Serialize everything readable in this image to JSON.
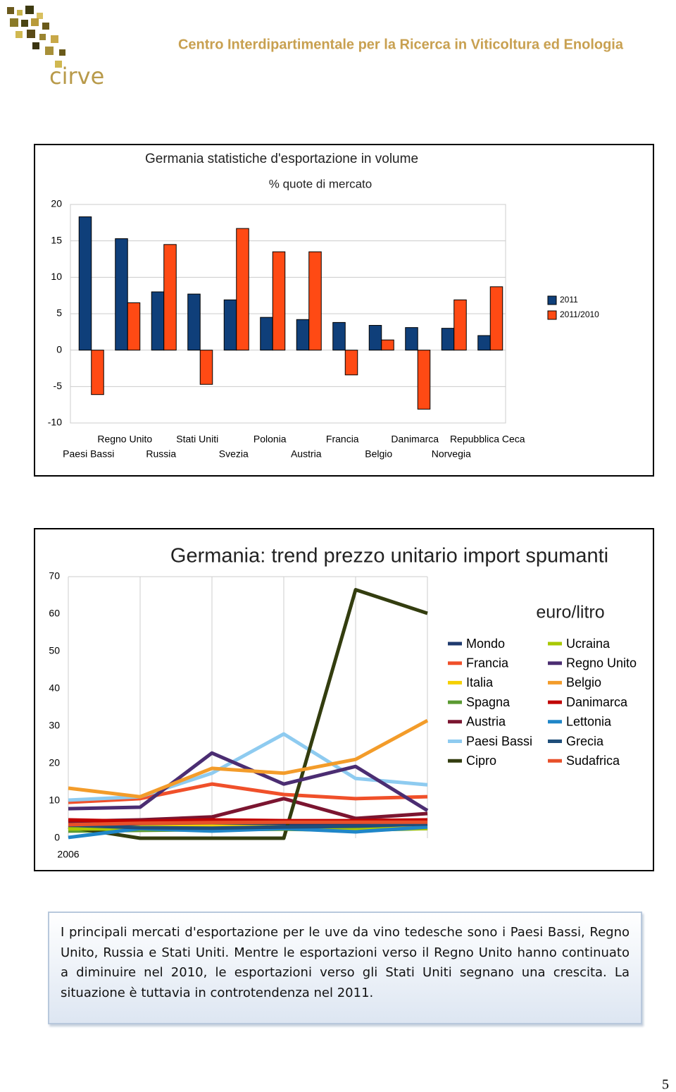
{
  "header": {
    "title": "Centro Interdipartimentale per la Ricerca in Viticoltura ed Enologia",
    "logo_text": "cirve"
  },
  "chart_data": [
    {
      "type": "bar",
      "title": "Germania statistiche d'esportazione in volume",
      "subtitle": "% quote di mercato",
      "categories": [
        "Paesi Bassi",
        "Regno Unito",
        "Russia",
        "Stati Uniti",
        "Svezia",
        "Polonia",
        "Austria",
        "Francia",
        "Belgio",
        "Danimarca",
        "Norvegia",
        "Repubblica Ceca"
      ],
      "series": [
        {
          "name": "2011",
          "color": "#0f3f7a",
          "values": [
            18.3,
            15.3,
            8.0,
            7.7,
            6.9,
            4.5,
            4.2,
            3.8,
            3.4,
            3.1,
            3.0,
            2.0
          ]
        },
        {
          "name": "2011/2010",
          "color": "#ff4a14",
          "values": [
            -6.1,
            6.5,
            14.5,
            -4.7,
            16.7,
            13.5,
            13.5,
            -3.4,
            1.4,
            -8.1,
            6.9,
            8.7
          ]
        }
      ],
      "ylim": [
        -10,
        20
      ],
      "yticks": [
        -10,
        -5,
        0,
        5,
        10,
        15,
        20
      ],
      "grid": true,
      "legend": "right"
    },
    {
      "type": "line",
      "title": "Germania: trend prezzo unitario import spumanti",
      "subtitle": "euro/litro",
      "categories": [
        "2006",
        null,
        null,
        null,
        null,
        null
      ],
      "series": [
        {
          "name": "Mondo",
          "color": "#1f3a6e",
          "values": [
            3.0,
            3.2,
            3.6,
            3.6,
            3.4,
            3.6
          ]
        },
        {
          "name": "Francia",
          "color": "#f0502a",
          "values": [
            9.6,
            10.6,
            14.5,
            11.7,
            10.6,
            11.1
          ]
        },
        {
          "name": "Italia",
          "color": "#f5d000",
          "values": [
            2.2,
            3.0,
            3.2,
            3.0,
            3.0,
            3.2
          ]
        },
        {
          "name": "Spagna",
          "color": "#5a9a32",
          "values": [
            1.9,
            2.1,
            2.3,
            2.4,
            2.1,
            2.6
          ]
        },
        {
          "name": "Austria",
          "color": "#7b1530",
          "values": [
            4.5,
            4.9,
            5.7,
            10.6,
            5.3,
            6.6
          ]
        },
        {
          "name": "Paesi Bassi",
          "color": "#8ecbf0",
          "values": [
            10.2,
            11.1,
            17.4,
            27.9,
            16.0,
            14.3
          ]
        },
        {
          "name": "Cipro",
          "color": "#333d0f",
          "values": [
            3.0,
            0,
            0,
            0,
            66.5,
            60.2
          ]
        },
        {
          "name": "Ucraina",
          "color": "#a8c800",
          "values": [
            2.5,
            2.5,
            2.6,
            2.5,
            2.4,
            2.6
          ]
        },
        {
          "name": "Regno Unito",
          "color": "#4b2d72",
          "values": [
            7.9,
            8.3,
            22.8,
            14.5,
            19.2,
            7.4
          ]
        },
        {
          "name": "Belgio",
          "color": "#f39c2a",
          "values": [
            13.4,
            11.1,
            18.7,
            17.4,
            21.1,
            31.5
          ]
        },
        {
          "name": "Danimarca",
          "color": "#c00000",
          "values": [
            4.9,
            4.5,
            4.9,
            4.7,
            4.7,
            4.9
          ]
        },
        {
          "name": "Lettonia",
          "color": "#1f86c8",
          "values": [
            0.2,
            2.6,
            1.9,
            2.6,
            1.7,
            3.0
          ]
        },
        {
          "name": "Grecia",
          "color": "#1f4e79",
          "values": [
            3.5,
            2.8,
            2.7,
            3.0,
            3.2,
            3.8
          ]
        },
        {
          "name": "Sudafrica",
          "color": "#e8502a",
          "values": [
            3.6,
            4.0,
            4.2,
            4.3,
            4.3,
            4.3
          ]
        }
      ],
      "ylim": [
        0,
        70
      ],
      "yticks": [
        0,
        10,
        20,
        30,
        40,
        50,
        60,
        70
      ],
      "grid": "x",
      "legend": "right"
    }
  ],
  "text": "I principali mercati d'esportazione per le uve da vino tedesche sono i Paesi Bassi, Regno Unito, Russia e Stati Uniti. Mentre le esportazioni verso il Regno Unito hanno continuato a diminuire nel 2010, le esportazioni verso gli Stati Uniti segnano una crescita. La situazione è tuttavia in controtendenza nel 2011.",
  "page_number": "5"
}
